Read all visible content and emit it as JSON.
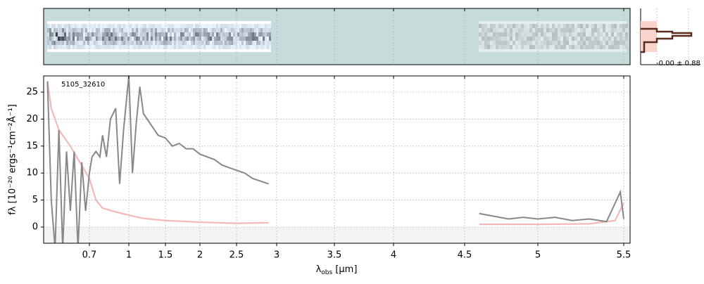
{
  "chart_data": {
    "type": "line",
    "object_label": "5105_32610",
    "x_label": {
      "symbol": "λ",
      "sub": "obs",
      "unit": " [μm]"
    },
    "y_label": "fλ [10⁻²⁰ ergs⁻¹cm⁻²Å⁻¹]",
    "profile_label": "-0.00 ± 0.88",
    "xlim": [
      0.58,
      5.52
    ],
    "xticks": [
      0.7,
      1.0,
      1.5,
      2.0,
      2.5,
      3.0,
      3.5,
      4.0,
      4.5,
      5.0,
      5.5
    ],
    "ylim": [
      -3,
      28
    ],
    "yticks": [
      0,
      5,
      10,
      15,
      20,
      25
    ],
    "grid": true,
    "series": [
      {
        "name": "flux",
        "color": "#888888",
        "x": [
          0.59,
          0.6,
          0.61,
          0.62,
          0.63,
          0.64,
          0.65,
          0.66,
          0.67,
          0.68,
          0.69,
          0.7,
          0.72,
          0.75,
          0.78,
          0.8,
          0.83,
          0.86,
          0.9,
          0.93,
          0.96,
          1.0,
          1.05,
          1.1,
          1.15,
          1.2,
          1.3,
          1.4,
          1.5,
          1.6,
          1.7,
          1.8,
          1.9,
          2.0,
          2.1,
          2.2,
          2.3,
          2.4,
          2.5,
          2.6,
          2.7,
          2.8,
          2.9,
          3.5,
          4.6,
          4.7,
          4.8,
          4.9,
          5.0,
          5.1,
          5.2,
          5.3,
          5.4,
          5.48,
          5.5
        ],
        "values": [
          27,
          5,
          -4,
          18,
          -4,
          14,
          3,
          14,
          -4,
          12,
          3,
          10,
          13,
          14,
          13,
          17,
          13,
          20,
          22,
          8,
          18,
          28,
          10,
          19,
          26,
          21,
          19,
          17,
          16.5,
          15,
          15.5,
          14.5,
          14.5,
          13.5,
          13,
          12.5,
          11.5,
          11,
          10.5,
          10,
          9,
          8.5,
          8,
          null,
          2.5,
          2,
          1.5,
          1.8,
          1.5,
          1.8,
          1.2,
          1.5,
          1,
          6.5,
          1.5
        ]
      },
      {
        "name": "error",
        "color": "#f4b8b8",
        "x": [
          0.59,
          0.6,
          0.62,
          0.65,
          0.7,
          0.75,
          0.8,
          0.9,
          1.0,
          1.2,
          1.5,
          2.0,
          2.5,
          2.9,
          3.5,
          4.6,
          5.0,
          5.3,
          5.45,
          5.5
        ],
        "values": [
          27,
          22,
          18,
          15,
          9,
          5,
          3.5,
          2.8,
          2.2,
          1.6,
          1.2,
          0.9,
          0.7,
          0.8,
          null,
          0.5,
          0.5,
          0.6,
          1.2,
          4.5
        ]
      }
    ]
  }
}
